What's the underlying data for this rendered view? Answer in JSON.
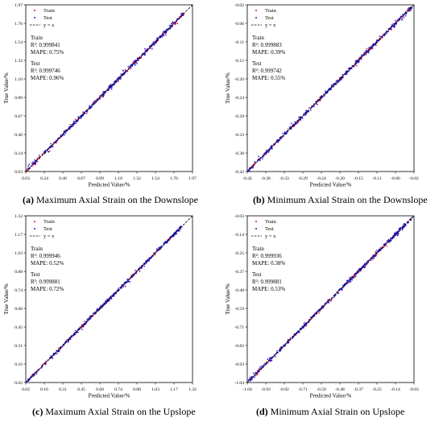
{
  "legend": {
    "train": "Train",
    "test": "Test",
    "identity": "y = x"
  },
  "colors": {
    "train": "#e8141c",
    "test": "#1c1ccc",
    "identity": "#000000"
  },
  "chart_data": [
    {
      "type": "scatter",
      "caption_tag": "(a)",
      "caption_text": " Maximum Axial Strain on the Downslope",
      "xlabel": "Predicted Value/%",
      "ylabel": "True Value/%",
      "xlim": [
        0.03,
        1.97
      ],
      "ylim": [
        0.03,
        1.97
      ],
      "xticks": [
        "0.03",
        "0.24",
        "0.46",
        "0.67",
        "0.89",
        "1.10",
        "1.32",
        "1.54",
        "1.76",
        "1.97"
      ],
      "yticks": [
        "0.03",
        "0.24",
        "0.46",
        "0.67",
        "0.89",
        "1.10",
        "1.32",
        "1.54",
        "1.76",
        "1.97"
      ],
      "legend_position": "top-left",
      "train_label": "Train",
      "train_r2": "R²: 0.999841",
      "train_mape": "MAPE: 0.75%",
      "test_label": "Test",
      "test_r2": "R²: 0.999746",
      "test_mape": "MAPE: 0.96%",
      "data_range": [
        0.04,
        1.87
      ],
      "spread": 0.012,
      "grid": false
    },
    {
      "type": "scatter",
      "caption_tag": "(b)",
      "caption_text": " Minimum Axial Strain on the Downslope",
      "xlabel": "Predicted Value/%",
      "ylabel": "True Value/%",
      "xlim": [
        -0.42,
        -0.02
      ],
      "ylim": [
        -0.42,
        -0.02
      ],
      "xticks": [
        "-0.42",
        "-0.38",
        "-0.33",
        "-0.29",
        "-0.24",
        "-0.20",
        "-0.15",
        "-0.11",
        "-0.06",
        "-0.02"
      ],
      "yticks": [
        "-0.42",
        "-0.38",
        "-0.33",
        "-0.29",
        "-0.24",
        "-0.20",
        "-0.15",
        "-0.11",
        "-0.06",
        "-0.02"
      ],
      "legend_position": "top-left",
      "train_label": "Train",
      "train_r2": "R²: 0.999883",
      "train_mape": "MAPE: 0.39%",
      "test_label": "Test",
      "test_r2": "R²: 0.999742",
      "test_mape": "MAPE: 0.55%",
      "data_range": [
        -0.42,
        -0.025
      ],
      "spread": 0.0025,
      "grid": false
    },
    {
      "type": "scatter",
      "caption_tag": "(c)",
      "caption_text": " Maximum Axial Strain on the Upslope",
      "xlabel": "Predicted Value/%",
      "ylabel": "True Value/%",
      "xlim": [
        0.02,
        1.32
      ],
      "ylim": [
        0.02,
        1.32
      ],
      "xticks": [
        "0.02",
        "0.16",
        "0.31",
        "0.45",
        "0.60",
        "0.74",
        "0.88",
        "1.03",
        "1.17",
        "1.32"
      ],
      "yticks": [
        "0.02",
        "0.16",
        "0.31",
        "0.45",
        "0.60",
        "0.74",
        "0.88",
        "1.03",
        "1.17",
        "1.32"
      ],
      "legend_position": "top-left",
      "train_label": "Train",
      "train_r2": "R²: 0.999946",
      "train_mape": "MAPE: 0.52%",
      "test_label": "Test",
      "test_r2": "R²: 0.999881",
      "test_mape": "MAPE: 0.72%",
      "data_range": [
        0.02,
        1.24
      ],
      "spread": 0.006,
      "grid": false
    },
    {
      "type": "scatter",
      "caption_tag": "(d)",
      "caption_text": " Minimum Axial Strain on Upslope",
      "xlabel": "Predicted Value/%",
      "ylabel": "True Value/%",
      "xlim": [
        -1.04,
        -0.03
      ],
      "ylim": [
        -1.04,
        -0.03
      ],
      "xticks": [
        "-1.04",
        "-0.93",
        "-0.82",
        "-0.71",
        "-0.59",
        "-0.48",
        "-0.37",
        "-0.25",
        "-0.14",
        "-0.03"
      ],
      "yticks": [
        "-1.04",
        "-0.93",
        "-0.82",
        "-0.71",
        "-0.59",
        "-0.48",
        "-0.37",
        "-0.25",
        "-0.14",
        "-0.03"
      ],
      "legend_position": "top-left",
      "train_label": "Train",
      "train_r2": "R²: 0.999936",
      "train_mape": "MAPE: 0.38%",
      "test_label": "Test",
      "test_r2": "R²: 0.999881",
      "test_mape": "MAPE: 0.53%",
      "data_range": [
        -1.03,
        -0.04
      ],
      "spread": 0.006,
      "grid": false
    }
  ]
}
